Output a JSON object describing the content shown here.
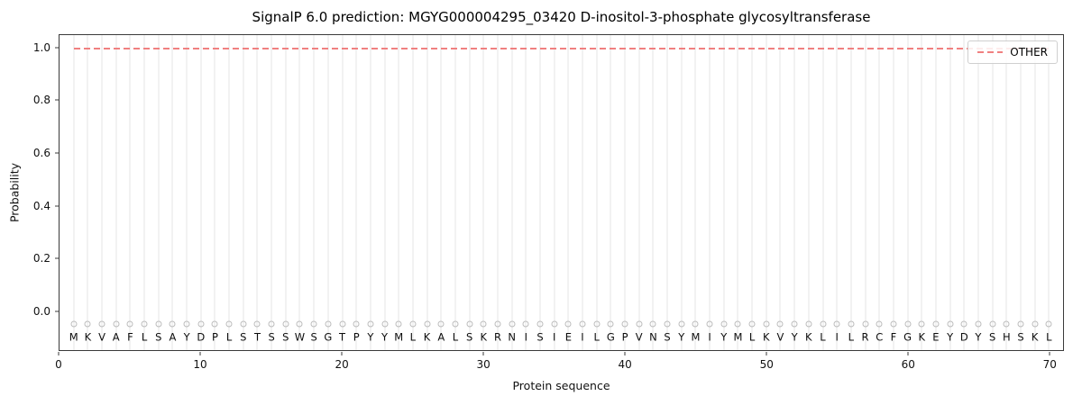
{
  "chart_data": {
    "type": "line",
    "title": "SignalP 6.0 prediction: MGYG000004295_03420 D-inositol-3-phosphate glycosyltransferase",
    "xlabel": "Protein sequence",
    "ylabel": "Probability",
    "xlim": [
      0,
      71
    ],
    "ylim": [
      -0.15,
      1.05
    ],
    "xticks": [
      0,
      10,
      20,
      30,
      40,
      50,
      60,
      70
    ],
    "yticks": [
      0.0,
      0.2,
      0.4,
      0.6,
      0.8,
      1.0
    ],
    "grid": {
      "vertical_per_residue": true,
      "color": "#e4e4e4"
    },
    "sequence": "MKVAFLSAYDPLSTSSWSGTPYYMLKALSKRNISIEILGPVNSYMIYMLKVYKLILRCFGKEYDYSHSKL",
    "sequence_letter_y": -0.102,
    "markers": {
      "symbol": "circle-open",
      "y": -0.05,
      "color": "#bcbcbc"
    },
    "series": [
      {
        "name": "OTHER",
        "style": "dashed",
        "color": "#f08080",
        "y_constant": 1.0,
        "x_start": 1,
        "x_end": 70
      }
    ],
    "legend": {
      "position": "upper right",
      "entries": [
        {
          "label": "OTHER",
          "color": "#f08080",
          "style": "dashed"
        }
      ]
    }
  }
}
